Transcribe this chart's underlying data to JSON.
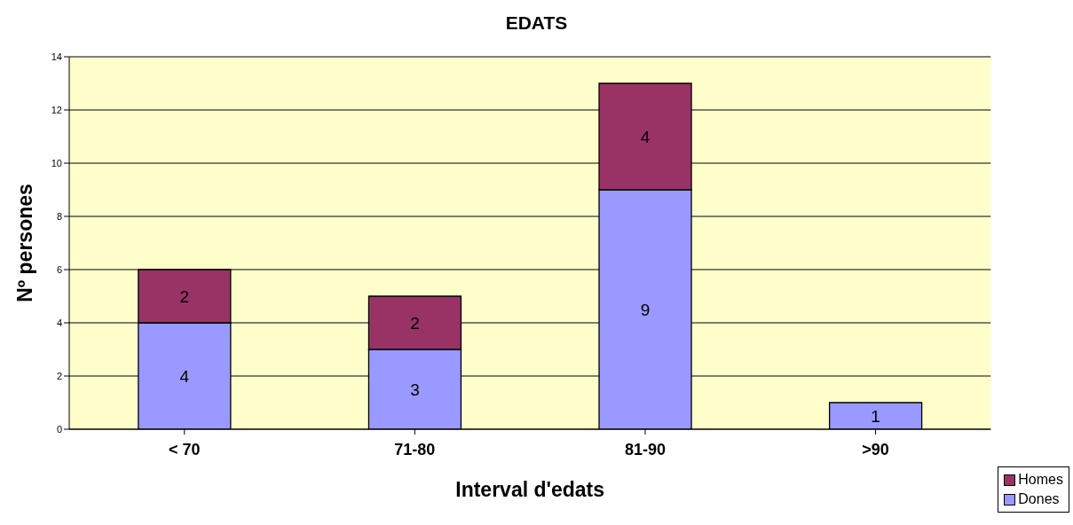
{
  "chart_data": {
    "type": "bar",
    "title": "EDATS",
    "xlabel": "Interval d'edats",
    "ylabel": "Nº persones",
    "categories": [
      "< 70",
      "71-80",
      "81-90",
      ">90"
    ],
    "series": [
      {
        "name": "Dones",
        "color": "#9999ff",
        "values": [
          4,
          3,
          9,
          1
        ]
      },
      {
        "name": "Homes",
        "color": "#993366",
        "values": [
          2,
          2,
          4,
          null
        ]
      }
    ],
    "stacked": true,
    "data_labels": true,
    "ylim": [
      0,
      14
    ],
    "yticks": [
      0,
      2,
      4,
      6,
      8,
      10,
      12,
      14
    ],
    "grid": "y",
    "legend": "bottom right"
  }
}
